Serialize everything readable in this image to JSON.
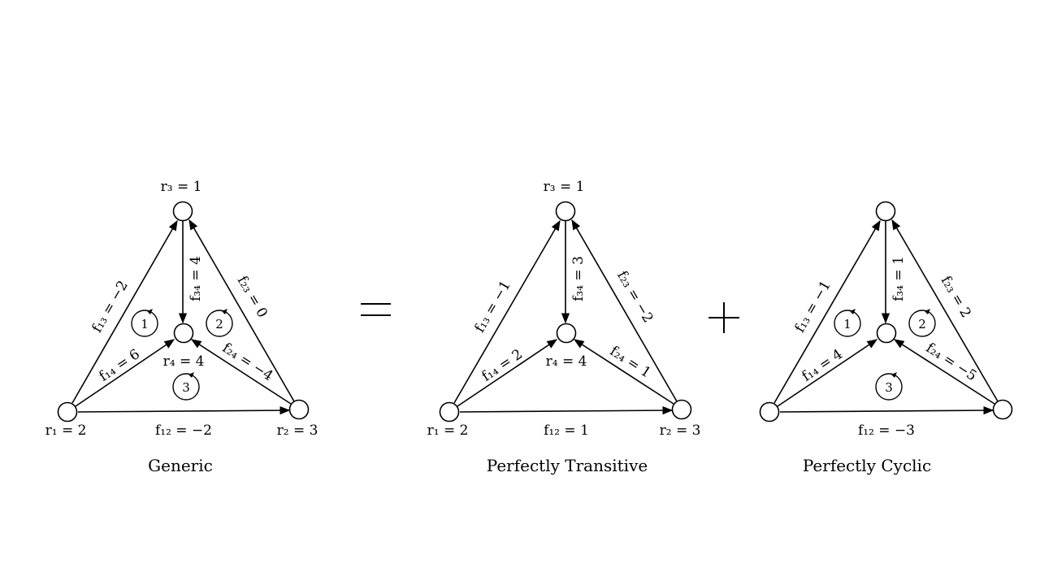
{
  "operators": {
    "equals": "=",
    "plus": "+"
  },
  "panels": [
    {
      "title": "Generic",
      "node_labels": {
        "r1": "r₁ = 2",
        "r2": "r₂ = 3",
        "r3": "r₃ = 1",
        "r4": "r₄ = 4"
      },
      "edge_labels": {
        "f13": "f₁₃ = −2",
        "f34": "f₃₄ = 4",
        "f23": "f₂₃ = 0",
        "f14": "f₁₄ = 6",
        "f24": "f₂₄ = −4",
        "f12": "f₁₂ = −2"
      },
      "cycles": [
        "1",
        "2",
        "3"
      ]
    },
    {
      "title": "Perfectly  Transitive",
      "node_labels": {
        "r1": "r₁ = 2",
        "r2": "r₂ = 3",
        "r3": "r₃ = 1",
        "r4": "r₄ = 4"
      },
      "edge_labels": {
        "f13": "f₁₃ = −1",
        "f34": "f₃₄ = 3",
        "f23": "f₂₃ = −2",
        "f14": "f₁₄ = 2",
        "f24": "f₂₄ = 1",
        "f12": "f₁₂ = 1"
      },
      "cycles": []
    },
    {
      "title": "Perfectly  Cyclic",
      "node_labels": {},
      "edge_labels": {
        "f13": "f₁₃ = −1",
        "f34": "f₃₄ = 1",
        "f23": "f₂₃ = 2",
        "f14": "f₁₄ = 4",
        "f24": "f₂₄ = −5",
        "f12": "f₁₂ = −3"
      },
      "cycles": [
        "1",
        "2",
        "3"
      ]
    }
  ]
}
